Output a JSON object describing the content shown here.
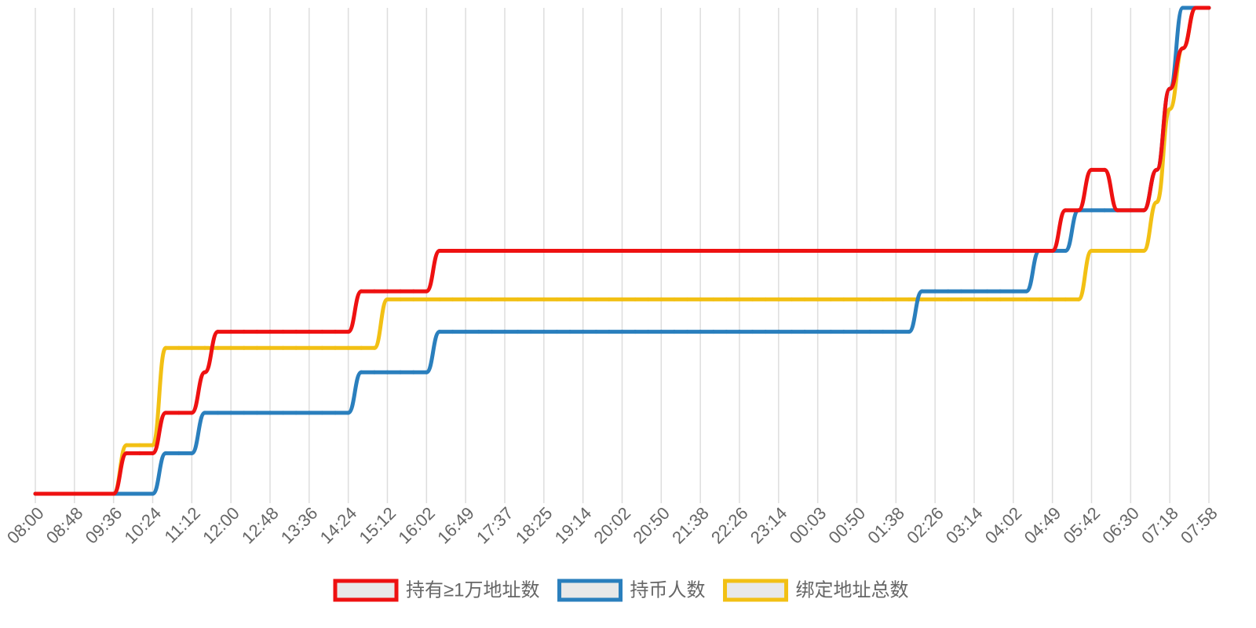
{
  "chart_data": {
    "type": "line",
    "categories": [
      "08:00",
      null,
      null,
      "08:48",
      null,
      null,
      "09:36",
      null,
      null,
      "10:24",
      null,
      null,
      "11:12",
      null,
      null,
      "12:00",
      null,
      null,
      "12:48",
      null,
      null,
      "13:36",
      null,
      null,
      "14:24",
      null,
      null,
      "15:12",
      null,
      null,
      "16:02",
      null,
      null,
      "16:49",
      null,
      null,
      "17:37",
      null,
      null,
      "18:25",
      null,
      null,
      "19:14",
      null,
      null,
      "20:02",
      null,
      null,
      "20:50",
      null,
      null,
      "21:38",
      null,
      null,
      "22:26",
      null,
      null,
      "23:14",
      null,
      null,
      "00:03",
      null,
      null,
      "00:50",
      null,
      null,
      "01:38",
      null,
      null,
      "02:26",
      null,
      null,
      "03:14",
      null,
      null,
      "04:02",
      null,
      null,
      "04:49",
      null,
      null,
      "05:42",
      null,
      null,
      "06:30",
      null,
      null,
      "07:18",
      null,
      null,
      "07:58"
    ],
    "series": [
      {
        "name": "持有≥1万地址数",
        "color": "#ee1111",
        "values": [
          0,
          0,
          0,
          0,
          0,
          0,
          0,
          1,
          1,
          1,
          2,
          2,
          2,
          3,
          4,
          4,
          4,
          4,
          4,
          4,
          4,
          4,
          4,
          4,
          4,
          5,
          5,
          5,
          5,
          5,
          5,
          6,
          6,
          6,
          6,
          6,
          6,
          6,
          6,
          6,
          6,
          6,
          6,
          6,
          6,
          6,
          6,
          6,
          6,
          6,
          6,
          6,
          6,
          6,
          6,
          6,
          6,
          6,
          6,
          6,
          6,
          6,
          6,
          6,
          6,
          6,
          6,
          6,
          6,
          6,
          6,
          6,
          6,
          6,
          6,
          6,
          6,
          6,
          6,
          7,
          7,
          8,
          8,
          7,
          7,
          7,
          8,
          10,
          11,
          12,
          12
        ]
      },
      {
        "name": "持币人数",
        "color": "#2a7fbd",
        "values": [
          0,
          0,
          0,
          0,
          0,
          0,
          0,
          0,
          0,
          0,
          1,
          1,
          1,
          2,
          2,
          2,
          2,
          2,
          2,
          2,
          2,
          2,
          2,
          2,
          2,
          3,
          3,
          3,
          3,
          3,
          3,
          4,
          4,
          4,
          4,
          4,
          4,
          4,
          4,
          4,
          4,
          4,
          4,
          4,
          4,
          4,
          4,
          4,
          4,
          4,
          4,
          4,
          4,
          4,
          4,
          4,
          4,
          4,
          4,
          4,
          4,
          4,
          4,
          4,
          4,
          4,
          4,
          4,
          5,
          5,
          5,
          5,
          5,
          5,
          5,
          5,
          5,
          6,
          6,
          6,
          7,
          7,
          7,
          7,
          7,
          7,
          8,
          10,
          12,
          12,
          12
        ]
      },
      {
        "name": "绑定地址总数",
        "color": "#f2c014",
        "values": [
          0,
          0,
          0,
          0,
          0,
          0,
          0,
          1.2,
          1.2,
          1.2,
          3.6,
          3.6,
          3.6,
          3.6,
          3.6,
          3.6,
          3.6,
          3.6,
          3.6,
          3.6,
          3.6,
          3.6,
          3.6,
          3.6,
          3.6,
          3.6,
          3.6,
          4.8,
          4.8,
          4.8,
          4.8,
          4.8,
          4.8,
          4.8,
          4.8,
          4.8,
          4.8,
          4.8,
          4.8,
          4.8,
          4.8,
          4.8,
          4.8,
          4.8,
          4.8,
          4.8,
          4.8,
          4.8,
          4.8,
          4.8,
          4.8,
          4.8,
          4.8,
          4.8,
          4.8,
          4.8,
          4.8,
          4.8,
          4.8,
          4.8,
          4.8,
          4.8,
          4.8,
          4.8,
          4.8,
          4.8,
          4.8,
          4.8,
          4.8,
          4.8,
          4.8,
          4.8,
          4.8,
          4.8,
          4.8,
          4.8,
          4.8,
          4.8,
          4.8,
          4.8,
          4.8,
          6,
          6,
          6,
          6,
          6,
          7.2,
          9.5,
          11,
          12,
          12
        ]
      }
    ],
    "ylim": [
      0,
      12
    ],
    "grid": true,
    "legend": "bottom"
  }
}
